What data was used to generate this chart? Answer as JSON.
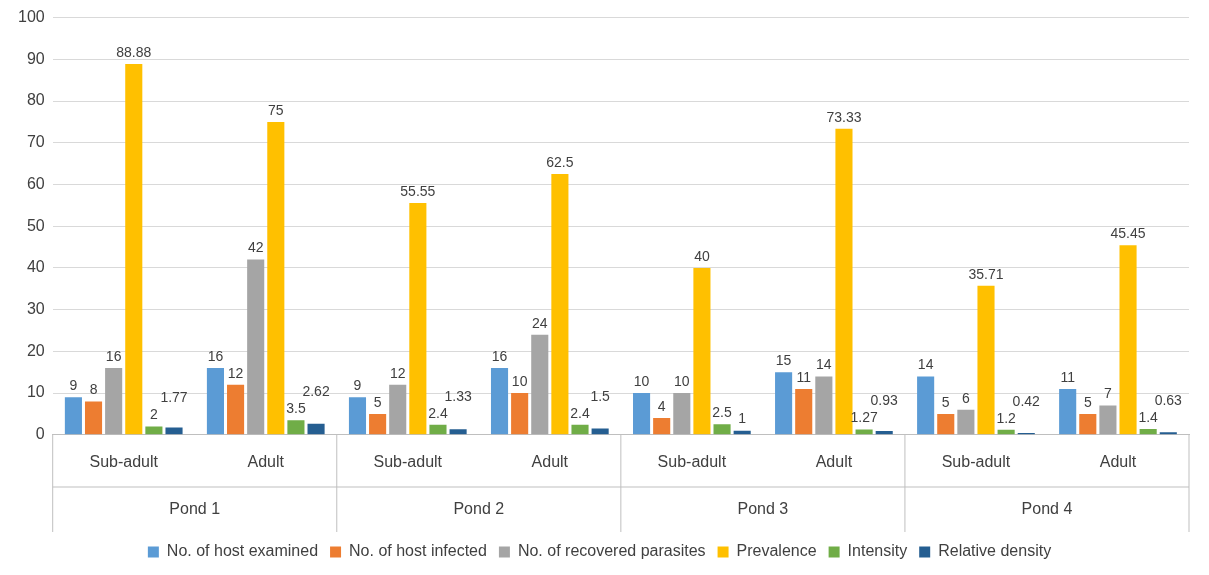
{
  "chart_data": {
    "type": "bar",
    "categories": [
      "Sub-adult",
      "Adult",
      "Sub-adult",
      "Adult",
      "Sub-adult",
      "Adult",
      "Sub-adult",
      "Adult"
    ],
    "annotations": [
      "Pond 1",
      "Pond 2",
      "Pond 3",
      "Pond 4"
    ],
    "series": [
      {
        "name": "No. of host examined",
        "color": "#5b9bd5",
        "values": [
          9,
          16,
          9,
          16,
          10,
          15,
          14,
          11
        ]
      },
      {
        "name": "No. of host infected",
        "color": "#ed7d31",
        "values": [
          8,
          12,
          5,
          10,
          4,
          11,
          5,
          5
        ]
      },
      {
        "name": "No. of recovered parasites",
        "color": "#a5a5a5",
        "values": [
          16,
          42,
          12,
          24,
          10,
          14,
          6,
          7
        ]
      },
      {
        "name": "Prevalence",
        "color": "#ffc000",
        "values": [
          88.88,
          75,
          55.55,
          62.5,
          40,
          73.33,
          35.71,
          45.45
        ]
      },
      {
        "name": "Intensity",
        "color": "#70ad47",
        "values": [
          2,
          3.5,
          2.4,
          2.4,
          2.5,
          1.27,
          1.2,
          1.4
        ]
      },
      {
        "name": "Relative density",
        "color": "#255e91",
        "values": [
          1.77,
          2.62,
          1.33,
          1.5,
          1,
          0.93,
          0.42,
          0.63
        ]
      }
    ],
    "ylim": [
      0,
      100
    ],
    "yticks": [
      0,
      10,
      20,
      30,
      40,
      50,
      60,
      70,
      80,
      90,
      100
    ],
    "grid": "y",
    "legend": "bottom",
    "data_labels": true
  }
}
